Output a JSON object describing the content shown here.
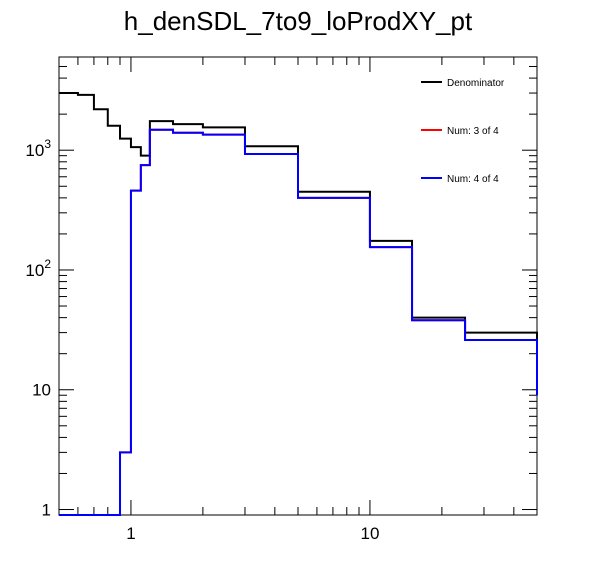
{
  "chart_data": {
    "type": "line",
    "title": "h_denSDL_7to9_loProdXY_pt",
    "xlabel": "",
    "ylabel": "",
    "x_scale": "log",
    "y_scale": "log",
    "xlim": [
      0.5,
      50
    ],
    "ylim": [
      0.9,
      6000
    ],
    "x_tick_labels": [
      {
        "value": 1,
        "label": "1"
      },
      {
        "value": 10,
        "label": "10"
      }
    ],
    "y_tick_labels": [
      {
        "value": 1,
        "label": "1"
      },
      {
        "value": 10,
        "label": "10"
      },
      {
        "value": 100,
        "label": "10^2"
      },
      {
        "value": 1000,
        "label": "10^3"
      }
    ],
    "bin_edges": [
      0.5,
      0.6,
      0.7,
      0.8,
      0.9,
      1.0,
      1.1,
      1.2,
      1.5,
      2.0,
      3.0,
      5.0,
      10.0,
      15.0,
      25.0,
      50.0
    ],
    "series": [
      {
        "name": "Denominator",
        "color": "#000000",
        "values": [
          3000,
          2900,
          2200,
          1600,
          1250,
          1060,
          900,
          1750,
          1650,
          1550,
          1080,
          450,
          175,
          40,
          30,
          10
        ]
      },
      {
        "name": "Num: 3 of 4",
        "color": "#ff0000",
        "values": [
          0,
          0,
          0,
          0,
          3,
          460,
          750,
          1480,
          1400,
          1350,
          930,
          400,
          155,
          38,
          26,
          9
        ]
      },
      {
        "name": "Num: 4 of 4",
        "color": "#0000ff",
        "values": [
          0,
          0,
          0,
          0,
          3,
          460,
          750,
          1480,
          1400,
          1350,
          930,
          400,
          155,
          38,
          26,
          9
        ]
      }
    ],
    "legend": {
      "position": "top-right",
      "entries": [
        "Denominator",
        "Num: 3 of 4",
        "Num: 4 of 4"
      ]
    },
    "grid": false
  }
}
